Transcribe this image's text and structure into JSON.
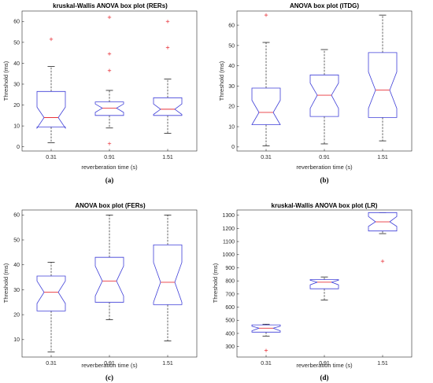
{
  "chart_data": [
    {
      "type": "box",
      "title": "kruskal-Wallis ANOVA box plot (RERs)",
      "panel_label": "(a)",
      "xlabel": "reverberation time (s)",
      "ylabel": "Threshold (ms)",
      "categories": [
        "0.31",
        "0.91",
        "1.51"
      ],
      "ylim": [
        -2,
        65
      ],
      "yticks": [
        0,
        10,
        20,
        30,
        40,
        50,
        60
      ],
      "grid": false,
      "notched": true,
      "boxes": [
        {
          "min": 2,
          "q1": 9.5,
          "median": 14,
          "q3": 26.5,
          "max": 38.5,
          "notch_low": 9,
          "notch_high": 19,
          "outliers": [
            51.5
          ]
        },
        {
          "min": 9,
          "q1": 15,
          "median": 18.5,
          "q3": 21.5,
          "max": 27,
          "notch_low": 16.5,
          "notch_high": 20.5,
          "outliers": [
            62,
            44.5,
            36.5,
            1.5
          ]
        },
        {
          "min": 6.5,
          "q1": 15,
          "median": 18,
          "q3": 23.5,
          "max": 32.5,
          "notch_low": 15.5,
          "notch_high": 20.5,
          "outliers": [
            60,
            47.5
          ]
        }
      ]
    },
    {
      "type": "box",
      "title": "ANOVA box plot (ITDG)",
      "panel_label": "(b)",
      "xlabel": "reverberation time (s)",
      "ylabel": "Threshold (ms)",
      "categories": [
        "0.31",
        "0.91",
        "1.51"
      ],
      "ylim": [
        -2,
        67
      ],
      "yticks": [
        0,
        10,
        20,
        30,
        40,
        50,
        60
      ],
      "grid": false,
      "notched": true,
      "boxes": [
        {
          "min": 0.5,
          "q1": 11,
          "median": 17,
          "q3": 29,
          "max": 51.5,
          "notch_low": 11,
          "notch_high": 23,
          "outliers": [
            65
          ]
        },
        {
          "min": 1.5,
          "q1": 15,
          "median": 25.5,
          "q3": 35.5,
          "max": 48,
          "notch_low": 19,
          "notch_high": 31.5,
          "outliers": []
        },
        {
          "min": 3,
          "q1": 14.5,
          "median": 28,
          "q3": 46.5,
          "max": 65,
          "notch_low": 19,
          "notch_high": 37,
          "outliers": []
        }
      ]
    },
    {
      "type": "box",
      "title": "ANOVA box plot (FERs)",
      "panel_label": "(c)",
      "xlabel": "reverberation time (s)",
      "ylabel": "Threshold (ms)",
      "categories": [
        "0.31",
        "0.91",
        "1.51"
      ],
      "ylim": [
        3,
        62
      ],
      "yticks": [
        10,
        20,
        30,
        40,
        50,
        60
      ],
      "grid": false,
      "notched": true,
      "boxes": [
        {
          "min": 5,
          "q1": 21.5,
          "median": 29,
          "q3": 35.5,
          "max": 41,
          "notch_low": 24.5,
          "notch_high": 33.5,
          "outliers": []
        },
        {
          "min": 18,
          "q1": 25,
          "median": 33.5,
          "q3": 43,
          "max": 60,
          "notch_low": 27.5,
          "notch_high": 39.5,
          "outliers": []
        },
        {
          "min": 9.5,
          "q1": 24,
          "median": 33,
          "q3": 48,
          "max": 60,
          "notch_low": 25,
          "notch_high": 41,
          "outliers": []
        }
      ]
    },
    {
      "type": "box",
      "title": "kruskal-Wallis ANOVA box plot (LR)",
      "panel_label": "(d)",
      "xlabel": "reverberation time (s)",
      "ylabel": "Threshold (ms)",
      "categories": [
        "0.31",
        "0.91",
        "1.51"
      ],
      "ylim": [
        220,
        1340
      ],
      "yticks": [
        300,
        400,
        500,
        600,
        700,
        800,
        900,
        1000,
        1100,
        1200,
        1300
      ],
      "grid": false,
      "notched": true,
      "boxes": [
        {
          "min": 380,
          "q1": 410,
          "median": 440,
          "q3": 465,
          "max": 470,
          "notch_low": 420,
          "notch_high": 455,
          "outliers": [
            270
          ]
        },
        {
          "min": 655,
          "q1": 740,
          "median": 790,
          "q3": 810,
          "max": 830,
          "notch_low": 770,
          "notch_high": 805,
          "outliers": []
        },
        {
          "min": 1160,
          "q1": 1180,
          "median": 1250,
          "q3": 1320,
          "max": 1320,
          "notch_low": 1215,
          "notch_high": 1290,
          "outliers": [
            950
          ]
        }
      ]
    }
  ]
}
